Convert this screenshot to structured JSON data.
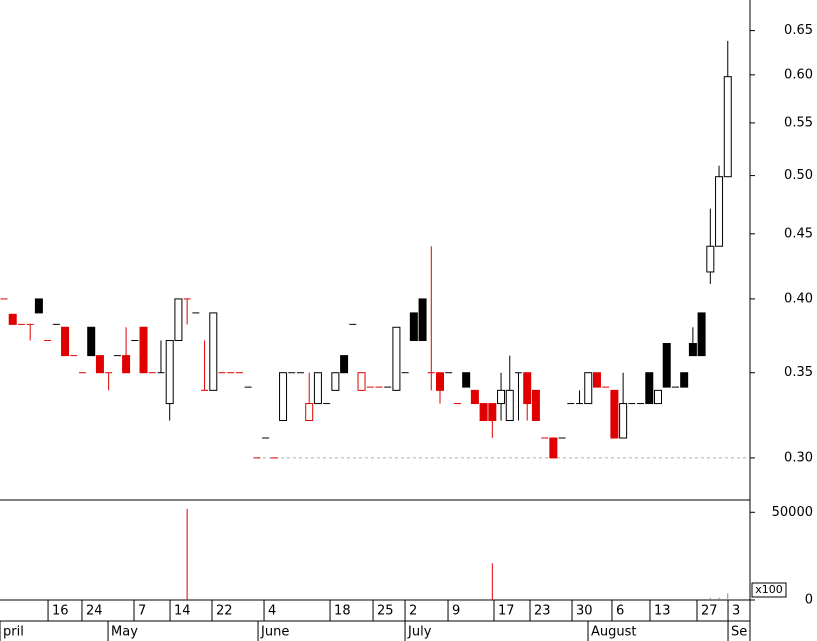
{
  "chart_data": {
    "type": "candlestick",
    "x": [
      0,
      1,
      2,
      3,
      4,
      5,
      6,
      7,
      8,
      9,
      10,
      11,
      12,
      13,
      14,
      15,
      16,
      17,
      18,
      19,
      20,
      21,
      22,
      23,
      24,
      25,
      26,
      27,
      28,
      29,
      30,
      31,
      32,
      33,
      34,
      35,
      36,
      37,
      38,
      39,
      40,
      41,
      42,
      43,
      44,
      45,
      46,
      47,
      48,
      49,
      50,
      51,
      52,
      53,
      54,
      55,
      56,
      57,
      58,
      59,
      60,
      61,
      62,
      63,
      64,
      65,
      66,
      67,
      68,
      69,
      70,
      71,
      72,
      73,
      74,
      75,
      76,
      77,
      78,
      79,
      80,
      81,
      82,
      83
    ],
    "open": [
      0.4,
      0.389,
      0.382,
      0.382,
      0.4,
      0.371,
      0.382,
      0.38,
      0.361,
      0.35,
      0.38,
      0.361,
      0.35,
      0.361,
      0.361,
      0.371,
      0.38,
      0.35,
      0.35,
      0.331,
      0.371,
      0.4,
      0.39,
      0.339,
      0.339,
      0.35,
      0.35,
      0.35,
      0.341,
      0.3,
      0.311,
      0.3,
      0.321,
      0.35,
      0.35,
      0.331,
      0.331,
      0.331,
      0.339,
      0.361,
      0.382,
      0.35,
      0.341,
      0.341,
      0.341,
      0.339,
      0.35,
      0.39,
      0.4,
      0.35,
      0.35,
      0.35,
      0.331,
      0.35,
      0.339,
      0.331,
      0.331,
      0.331,
      0.321,
      0.35,
      0.35,
      0.339,
      0.311,
      0.311,
      0.311,
      0.331,
      0.331,
      0.331,
      0.35,
      0.341,
      0.339,
      0.311,
      0.331,
      0.331,
      0.35,
      0.331,
      0.369,
      0.341,
      0.35,
      0.369,
      0.39,
      0.42,
      0.44,
      0.499
    ],
    "high": [
      0.4,
      0.389,
      0.382,
      0.382,
      0.4,
      0.371,
      0.382,
      0.38,
      0.361,
      0.35,
      0.38,
      0.361,
      0.35,
      0.361,
      0.38,
      0.371,
      0.38,
      0.35,
      0.371,
      0.371,
      0.4,
      0.4,
      0.39,
      0.371,
      0.39,
      0.35,
      0.35,
      0.35,
      0.341,
      0.3,
      0.311,
      0.3,
      0.35,
      0.35,
      0.35,
      0.35,
      0.35,
      0.331,
      0.35,
      0.361,
      0.382,
      0.35,
      0.341,
      0.341,
      0.341,
      0.38,
      0.35,
      0.39,
      0.4,
      0.44,
      0.35,
      0.35,
      0.331,
      0.35,
      0.339,
      0.331,
      0.331,
      0.35,
      0.361,
      0.35,
      0.35,
      0.339,
      0.311,
      0.311,
      0.311,
      0.331,
      0.339,
      0.35,
      0.35,
      0.341,
      0.339,
      0.35,
      0.331,
      0.331,
      0.35,
      0.339,
      0.369,
      0.341,
      0.35,
      0.38,
      0.39,
      0.471,
      0.509,
      0.638
    ],
    "low": [
      0.4,
      0.382,
      0.382,
      0.371,
      0.39,
      0.371,
      0.382,
      0.361,
      0.361,
      0.35,
      0.361,
      0.35,
      0.339,
      0.361,
      0.35,
      0.371,
      0.35,
      0.35,
      0.35,
      0.321,
      0.371,
      0.382,
      0.39,
      0.339,
      0.339,
      0.35,
      0.35,
      0.35,
      0.341,
      0.3,
      0.311,
      0.3,
      0.321,
      0.35,
      0.35,
      0.321,
      0.331,
      0.331,
      0.339,
      0.35,
      0.382,
      0.339,
      0.341,
      0.341,
      0.341,
      0.339,
      0.35,
      0.371,
      0.371,
      0.339,
      0.331,
      0.35,
      0.331,
      0.341,
      0.331,
      0.321,
      0.311,
      0.321,
      0.321,
      0.321,
      0.321,
      0.321,
      0.311,
      0.3,
      0.311,
      0.331,
      0.331,
      0.331,
      0.341,
      0.341,
      0.311,
      0.311,
      0.331,
      0.331,
      0.331,
      0.331,
      0.341,
      0.341,
      0.341,
      0.361,
      0.361,
      0.411,
      0.44,
      0.499
    ],
    "close": [
      0.4,
      0.382,
      0.382,
      0.382,
      0.39,
      0.371,
      0.382,
      0.361,
      0.361,
      0.35,
      0.361,
      0.35,
      0.35,
      0.361,
      0.35,
      0.371,
      0.35,
      0.35,
      0.35,
      0.371,
      0.4,
      0.4,
      0.39,
      0.339,
      0.39,
      0.35,
      0.35,
      0.35,
      0.341,
      0.3,
      0.311,
      0.3,
      0.35,
      0.35,
      0.35,
      0.321,
      0.35,
      0.331,
      0.35,
      0.35,
      0.382,
      0.339,
      0.341,
      0.341,
      0.341,
      0.38,
      0.35,
      0.371,
      0.371,
      0.35,
      0.339,
      0.35,
      0.331,
      0.341,
      0.331,
      0.321,
      0.321,
      0.339,
      0.339,
      0.35,
      0.331,
      0.321,
      0.311,
      0.3,
      0.311,
      0.331,
      0.331,
      0.35,
      0.341,
      0.341,
      0.311,
      0.331,
      0.331,
      0.331,
      0.331,
      0.339,
      0.341,
      0.341,
      0.341,
      0.361,
      0.361,
      0.44,
      0.499,
      0.598
    ],
    "colors": [
      "#e00000",
      "#e00000",
      "#e00000",
      "#e00000",
      "#000000",
      "#e00000",
      "#000000",
      "#e00000",
      "#e00000",
      "#e00000",
      "#000000",
      "#e00000",
      "#e00000",
      "#000000",
      "#e00000",
      "#000000",
      "#e00000",
      "#e00000",
      "#000000",
      "#000000",
      "#000000",
      "#e00000",
      "#000000",
      "#e00000",
      "#000000",
      "#e00000",
      "#e00000",
      "#e00000",
      "#000000",
      "#e00000",
      "#000000",
      "#e00000",
      "#000000",
      "#000000",
      "#000000",
      "#e00000",
      "#000000",
      "#000000",
      "#000000",
      "#000000",
      "#000000",
      "#e00000",
      "#e00000",
      "#e00000",
      "#000000",
      "#000000",
      "#000000",
      "#000000",
      "#000000",
      "#e00000",
      "#e00000",
      "#000000",
      "#e00000",
      "#000000",
      "#e00000",
      "#e00000",
      "#e00000",
      "#000000",
      "#000000",
      "#000000",
      "#e00000",
      "#e00000",
      "#e00000",
      "#e00000",
      "#000000",
      "#000000",
      "#000000",
      "#000000",
      "#e00000",
      "#e00000",
      "#e00000",
      "#000000",
      "#000000",
      "#000000",
      "#000000",
      "#000000",
      "#000000",
      "#000000",
      "#000000",
      "#000000",
      "#000000",
      "#000000",
      "#000000",
      "#000000"
    ],
    "hollow": [
      false,
      false,
      false,
      false,
      false,
      false,
      false,
      false,
      false,
      false,
      false,
      false,
      false,
      false,
      false,
      false,
      false,
      false,
      false,
      true,
      true,
      false,
      false,
      false,
      true,
      false,
      false,
      false,
      false,
      false,
      false,
      false,
      true,
      false,
      false,
      true,
      true,
      false,
      true,
      false,
      false,
      true,
      false,
      false,
      false,
      true,
      false,
      false,
      false,
      false,
      false,
      false,
      false,
      false,
      false,
      false,
      false,
      true,
      true,
      false,
      false,
      false,
      false,
      false,
      false,
      false,
      false,
      true,
      false,
      false,
      false,
      true,
      false,
      false,
      false,
      true,
      false,
      false,
      false,
      false,
      false,
      true,
      true,
      true
    ],
    "log_scale": true,
    "ylim": [
      0.278,
      0.687
    ],
    "yticks": [
      {
        "value": 0.3,
        "label": "0.30"
      },
      0.35,
      {
        "value": 0.4,
        "label": "0.40"
      },
      0.45,
      {
        "value": 0.5,
        "label": "0.50"
      },
      0.55,
      {
        "value": 0.6,
        "label": "0.60"
      },
      0.65
    ],
    "reference_line": 0.3,
    "xlim": [
      -0.46,
      85.55
    ],
    "xticks": [
      {
        "value": 5.05,
        "label": "16"
      },
      {
        "value": 8.94,
        "label": "24"
      },
      {
        "value": 14.91,
        "label": "7"
      },
      {
        "value": 19.04,
        "label": "14"
      },
      {
        "value": 23.85,
        "label": "22"
      },
      {
        "value": 29.82,
        "label": "4"
      },
      {
        "value": 37.39,
        "label": "18"
      },
      {
        "value": 42.32,
        "label": "25"
      },
      {
        "value": 45.99,
        "label": "2"
      },
      {
        "value": 50.92,
        "label": "9"
      },
      {
        "value": 56.19,
        "label": "17"
      },
      {
        "value": 60.32,
        "label": "23"
      },
      {
        "value": 65.14,
        "label": "30"
      },
      {
        "value": 69.72,
        "label": "6"
      },
      {
        "value": 74.08,
        "label": "13"
      },
      {
        "value": 79.47,
        "label": "27"
      },
      {
        "value": 83.03,
        "label": "3"
      }
    ],
    "month_ticks": [
      {
        "value": -0.46,
        "label": "pril"
      },
      {
        "value": 11.93,
        "label": "May"
      },
      {
        "value": 29.13,
        "label": "June"
      },
      {
        "value": 45.99,
        "label": "July"
      },
      {
        "value": 66.97,
        "label": "August"
      },
      {
        "value": 83.03,
        "label": "Se"
      }
    ],
    "volume": {
      "values": [
        null,
        null,
        null,
        null,
        null,
        null,
        null,
        null,
        null,
        null,
        null,
        null,
        null,
        null,
        null,
        null,
        null,
        null,
        null,
        null,
        null,
        51900,
        null,
        null,
        null,
        null,
        null,
        null,
        null,
        null,
        null,
        null,
        null,
        null,
        null,
        null,
        null,
        null,
        null,
        null,
        null,
        null,
        null,
        null,
        null,
        null,
        null,
        null,
        null,
        null,
        null,
        null,
        null,
        null,
        null,
        null,
        20900,
        null,
        null,
        null,
        null,
        null,
        null,
        null,
        null,
        null,
        null,
        null,
        null,
        null,
        null,
        null,
        null,
        null,
        null,
        null,
        null,
        null,
        null,
        null,
        null,
        1300,
        1300,
        3800
      ],
      "colors": [
        "#e00000",
        "#888888"
      ],
      "ylim": [
        0,
        57000
      ],
      "yticks": [
        0,
        50000
      ],
      "unit_label": "x100"
    }
  }
}
